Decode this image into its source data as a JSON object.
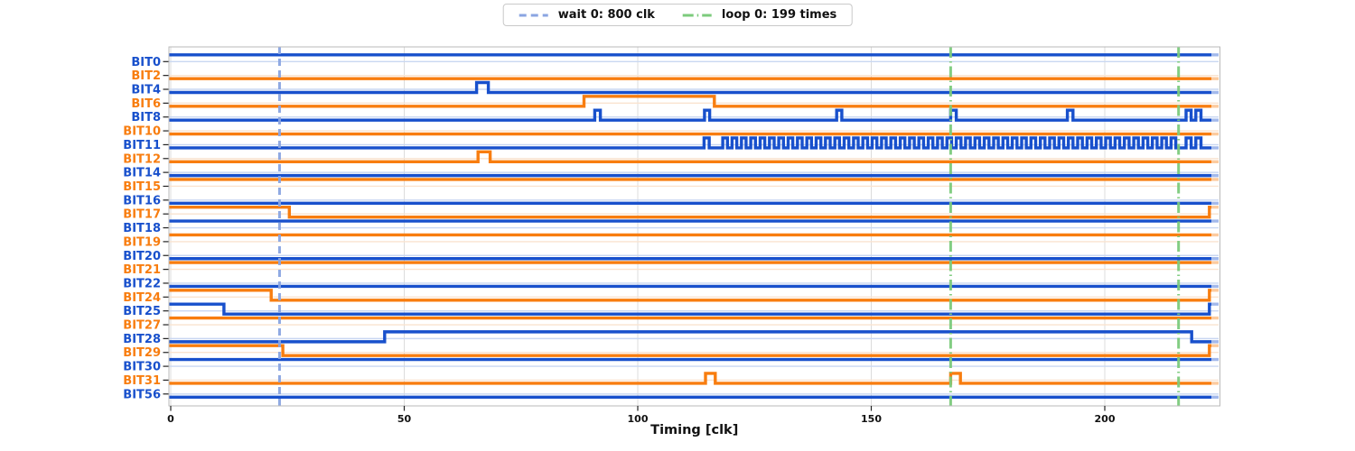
{
  "chart_data": {
    "type": "digital-timing",
    "title": "",
    "xlabel": "Timing [clk]",
    "x_ticks": [
      0,
      50,
      100,
      150,
      200
    ],
    "x_tick_labels": [
      "0",
      "50",
      "100",
      "150",
      "200"
    ],
    "xlim": [
      0,
      224.4
    ],
    "grid": true,
    "legend_position": "top-center",
    "legend": [
      {
        "label": "wait 0: 800 clk",
        "style": "dashed",
        "color": "#8aa5e2"
      },
      {
        "label": "loop 0: 199 times",
        "style": "dashdot",
        "color": "#7ccb7c"
      }
    ],
    "markers": [
      {
        "kind": "wait",
        "label": "wait 0: 800 clk",
        "t": 23.3
      },
      {
        "kind": "loop",
        "label": "loop 0: 199 times",
        "t": 167.0
      },
      {
        "kind": "loop",
        "label": "loop 0: 199 times",
        "t": 215.8
      }
    ],
    "palette": {
      "blue": "#1850cc",
      "orange": "#f87d0f",
      "blue_faint": "#c9d7f2",
      "orange_faint": "#fae3cf",
      "grid": "#dcdcdc",
      "spine": "#b9b9b9",
      "tick": "#222222",
      "wait_marker": "#8aa5e2",
      "loop_marker": "#7ccb7c"
    },
    "fade_tail_start_clk": 222.8,
    "signals": [
      {
        "name": "BIT0",
        "color": "blue",
        "events": [
          [
            0,
            1
          ]
        ]
      },
      {
        "name": "BIT2",
        "color": "orange",
        "events": [
          [
            0,
            0
          ]
        ]
      },
      {
        "name": "BIT4",
        "color": "blue",
        "events": [
          [
            0,
            0
          ],
          [
            65.5,
            1
          ],
          [
            68,
            0
          ]
        ]
      },
      {
        "name": "BIT6",
        "color": "orange",
        "events": [
          [
            0,
            0
          ],
          [
            88.5,
            1
          ],
          [
            116.4,
            0
          ]
        ]
      },
      {
        "name": "BIT8",
        "color": "blue",
        "events": [
          [
            0,
            0
          ],
          [
            90.8,
            1
          ],
          [
            92,
            0
          ],
          [
            114.3,
            1
          ],
          [
            115.4,
            0
          ],
          [
            142.6,
            1
          ],
          [
            143.7,
            0
          ],
          [
            167,
            1
          ],
          [
            168.2,
            0
          ],
          [
            192,
            1
          ],
          [
            193.2,
            0
          ],
          [
            217.4,
            1
          ],
          [
            218.5,
            0
          ],
          [
            219.5,
            1
          ],
          [
            220.6,
            0
          ]
        ]
      },
      {
        "name": "BIT10",
        "color": "orange",
        "events": [
          [
            0,
            0
          ]
        ]
      },
      {
        "name": "BIT11",
        "color": "blue",
        "events": [
          [
            0,
            0
          ],
          [
            114.2,
            1
          ],
          [
            115.3,
            0
          ],
          [
            217.4,
            1
          ],
          [
            218.5,
            0
          ],
          [
            219.5,
            1
          ],
          [
            220.6,
            0
          ]
        ],
        "osc": {
          "start": 118.2,
          "end": 215.6,
          "period": 2,
          "high": 1
        }
      },
      {
        "name": "BIT12",
        "color": "orange",
        "events": [
          [
            0,
            0
          ],
          [
            65.8,
            1
          ],
          [
            68.4,
            0
          ]
        ]
      },
      {
        "name": "BIT14",
        "color": "blue",
        "events": [
          [
            0,
            0
          ]
        ]
      },
      {
        "name": "BIT15",
        "color": "orange",
        "events": [
          [
            0,
            1
          ]
        ]
      },
      {
        "name": "BIT16",
        "color": "blue",
        "events": [
          [
            0,
            0
          ]
        ]
      },
      {
        "name": "BIT17",
        "color": "orange",
        "events": [
          [
            0,
            1
          ],
          [
            25.4,
            0
          ],
          [
            222.4,
            1
          ]
        ]
      },
      {
        "name": "BIT18",
        "color": "blue",
        "events": [
          [
            0,
            1
          ]
        ]
      },
      {
        "name": "BIT19",
        "color": "orange",
        "events": [
          [
            0,
            1
          ]
        ]
      },
      {
        "name": "BIT20",
        "color": "blue",
        "events": [
          [
            0,
            0
          ]
        ]
      },
      {
        "name": "BIT21",
        "color": "orange",
        "events": [
          [
            0,
            1
          ]
        ]
      },
      {
        "name": "BIT22",
        "color": "blue",
        "events": [
          [
            0,
            0
          ]
        ]
      },
      {
        "name": "BIT24",
        "color": "orange",
        "events": [
          [
            0,
            1
          ],
          [
            21.5,
            0
          ],
          [
            222.4,
            1
          ]
        ]
      },
      {
        "name": "BIT25",
        "color": "blue",
        "events": [
          [
            0,
            1
          ],
          [
            11.4,
            0
          ],
          [
            222.4,
            1
          ]
        ]
      },
      {
        "name": "BIT27",
        "color": "orange",
        "events": [
          [
            0,
            1
          ]
        ]
      },
      {
        "name": "BIT28",
        "color": "blue",
        "events": [
          [
            0,
            0
          ],
          [
            45.8,
            1
          ],
          [
            218.6,
            0
          ]
        ]
      },
      {
        "name": "BIT29",
        "color": "orange",
        "events": [
          [
            0,
            1
          ],
          [
            24,
            0
          ],
          [
            222.4,
            1
          ]
        ]
      },
      {
        "name": "BIT30",
        "color": "blue",
        "events": [
          [
            0,
            1
          ]
        ]
      },
      {
        "name": "BIT31",
        "color": "orange",
        "events": [
          [
            0,
            0
          ],
          [
            114.5,
            1
          ],
          [
            116.6,
            0
          ],
          [
            167,
            1
          ],
          [
            169.1,
            0
          ]
        ]
      },
      {
        "name": "BIT56",
        "color": "blue",
        "events": [
          [
            0,
            0
          ]
        ]
      }
    ]
  }
}
